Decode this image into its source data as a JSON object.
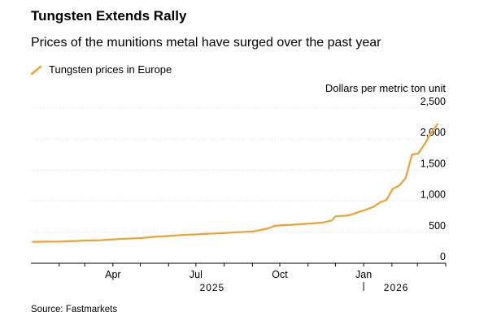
{
  "header": {
    "title": "Tungsten Extends Rally",
    "subtitle": "Prices of the munitions metal have surged over the past year"
  },
  "source": "Source: Fastmarkets",
  "chart_data": {
    "type": "line",
    "title": "Tungsten Extends Rally",
    "subtitle": "Prices of the munitions metal have surged over the past year",
    "ylabel": "Dollars per metric ton unit",
    "xlabel": "",
    "ylim": [
      0,
      2500
    ],
    "y_ticks": [
      0,
      500,
      1000,
      1500,
      2000,
      2500
    ],
    "y_tick_labels": [
      "0",
      "500",
      "1,000",
      "1,500",
      "2,000",
      "2,500"
    ],
    "x_ticks": [
      "2025-04-01",
      "2025-07-01",
      "2025-10-01",
      "2026-01-01"
    ],
    "x_tick_labels": [
      "Apr",
      "Jul",
      "Oct",
      "Jan"
    ],
    "year_labels": [
      "2025",
      "2026"
    ],
    "grid": true,
    "legend_position": "top-left",
    "series": [
      {
        "name": "Tungsten prices in Europe",
        "color": "#f0a030",
        "x": [
          "2025-01-03",
          "2025-01-17",
          "2025-02-03",
          "2025-02-17",
          "2025-03-03",
          "2025-03-17",
          "2025-04-01",
          "2025-04-15",
          "2025-05-01",
          "2025-05-15",
          "2025-06-02",
          "2025-06-16",
          "2025-07-01",
          "2025-07-15",
          "2025-08-01",
          "2025-08-15",
          "2025-09-01",
          "2025-09-10",
          "2025-09-18",
          "2025-09-25",
          "2025-10-01",
          "2025-10-15",
          "2025-11-03",
          "2025-11-17",
          "2025-11-27",
          "2025-12-01",
          "2025-12-15",
          "2026-01-01",
          "2026-01-12",
          "2026-01-19",
          "2026-01-26",
          "2026-02-02",
          "2026-02-09",
          "2026-02-16",
          "2026-02-23",
          "2026-03-02",
          "2026-03-09",
          "2026-03-16",
          "2026-03-23"
        ],
        "values": [
          345,
          348,
          350,
          358,
          365,
          370,
          385,
          395,
          405,
          425,
          440,
          455,
          465,
          475,
          485,
          500,
          510,
          535,
          560,
          600,
          610,
          620,
          640,
          655,
          690,
          755,
          770,
          850,
          910,
          980,
          1020,
          1200,
          1250,
          1370,
          1750,
          1770,
          1920,
          2100,
          2240
        ]
      }
    ]
  }
}
